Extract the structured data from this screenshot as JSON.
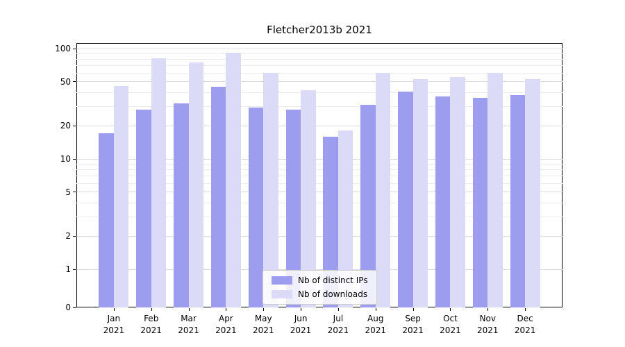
{
  "figure": {
    "title": "Fletcher2013b 2021"
  },
  "chart_data": {
    "type": "bar",
    "title": "Fletcher2013b 2021",
    "categories": [
      "Jan",
      "Feb",
      "Mar",
      "Apr",
      "May",
      "Jun",
      "Jul",
      "Aug",
      "Sep",
      "Oct",
      "Nov",
      "Dec"
    ],
    "year": "2021",
    "series": [
      {
        "name": "Nb of distinct IPs",
        "color": "#9d9df0",
        "values": [
          17,
          28,
          32,
          45,
          29,
          28,
          16,
          31,
          41,
          37,
          36,
          38
        ]
      },
      {
        "name": "Nb of downloads",
        "color": "#dbdbf8",
        "values": [
          46,
          82,
          75,
          92,
          60,
          42,
          18,
          60,
          53,
          55,
          60,
          53
        ]
      }
    ],
    "yscale": "symlog",
    "yticks": [
      0,
      1,
      2,
      5,
      10,
      20,
      50,
      100
    ],
    "ylim": [
      0,
      112
    ],
    "xlabel": "",
    "ylabel": "",
    "grid": true,
    "legend_position": "lower center"
  }
}
